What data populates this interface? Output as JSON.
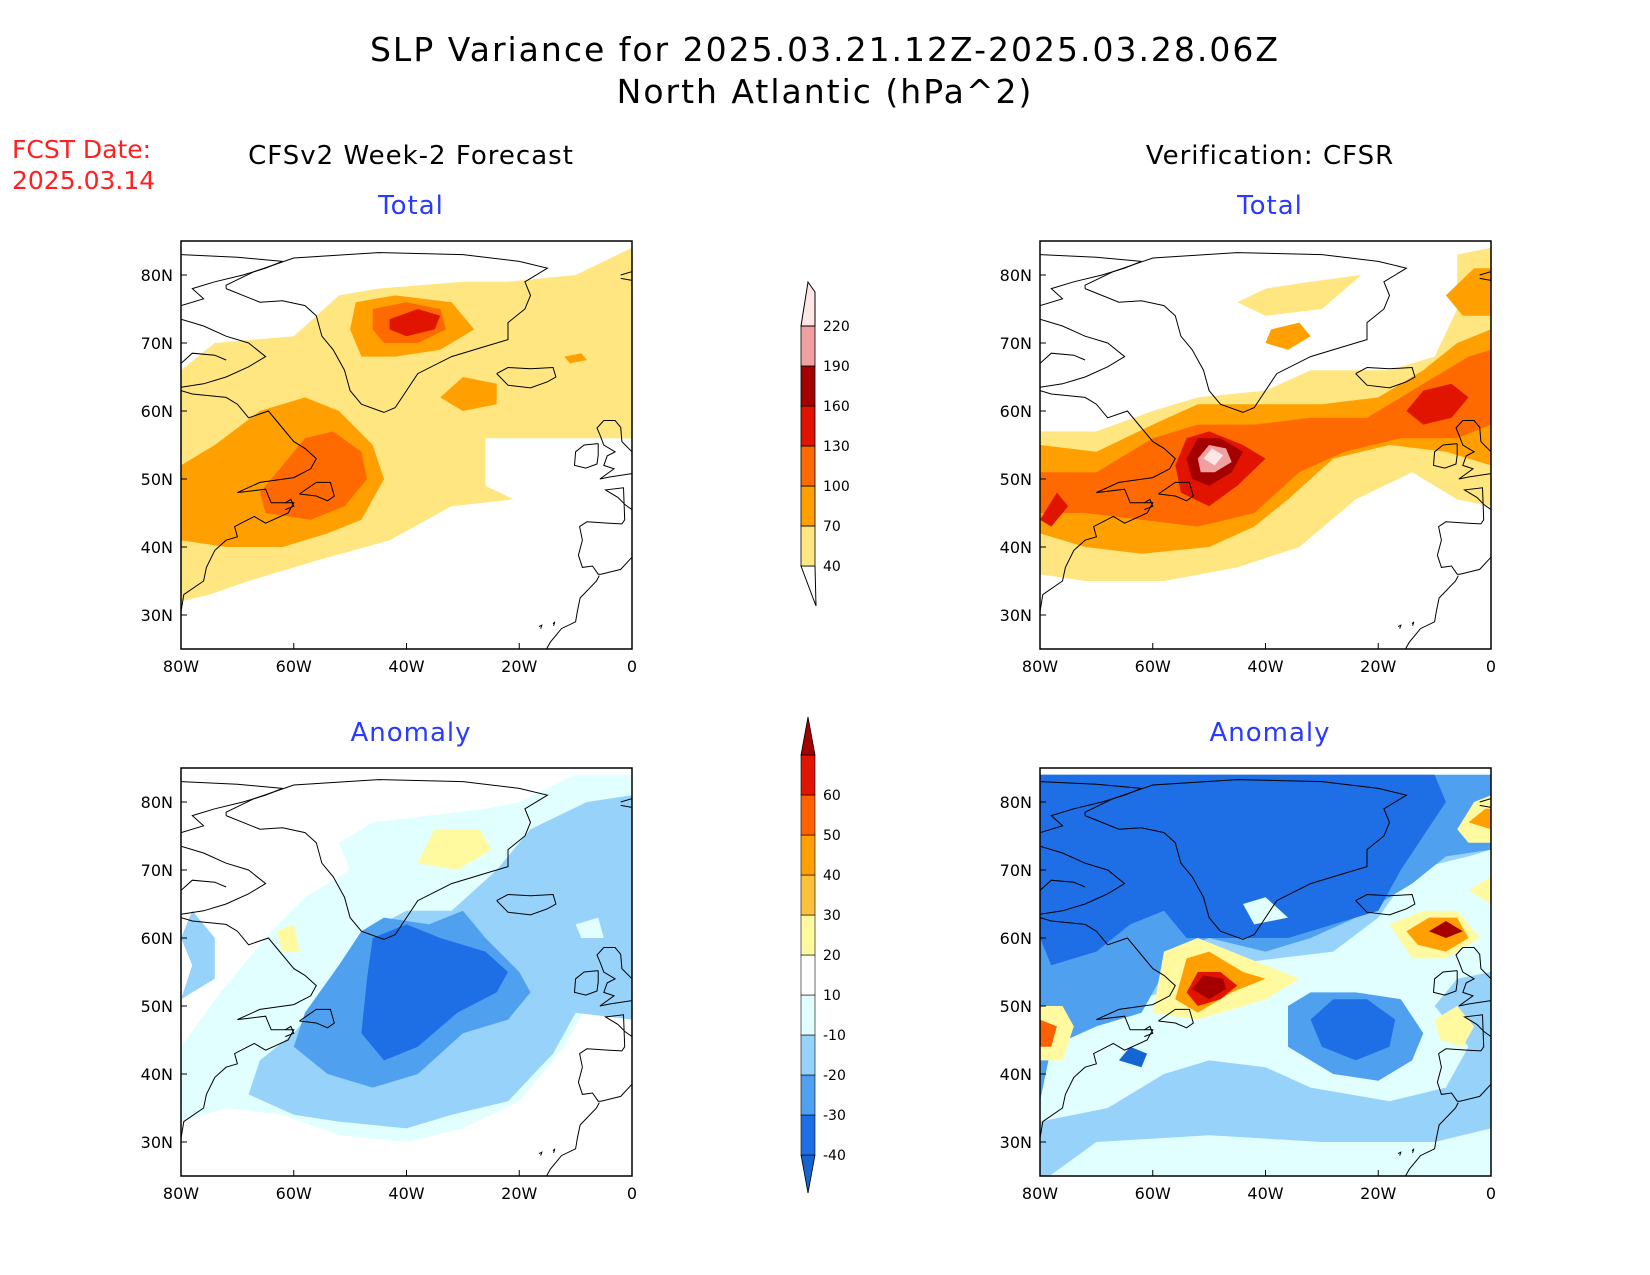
{
  "figure": {
    "title_line1": "SLP Variance for 2025.03.21.12Z-2025.03.28.06Z",
    "title_line2": "North Atlantic (hPa^2)",
    "fcst_label": "FCST Date:",
    "fcst_date": "2025.03.14",
    "left_column": "CFSv2 Week-2 Forecast",
    "right_column": "Verification: CFSR"
  },
  "panels": [
    {
      "id": "fcst-total",
      "title": "Total"
    },
    {
      "id": "verif-total",
      "title": "Total"
    },
    {
      "id": "fcst-anomaly",
      "title": "Anomaly"
    },
    {
      "id": "verif-anomaly",
      "title": "Anomaly"
    }
  ],
  "axes": {
    "x_ticks": [
      "80W",
      "60W",
      "40W",
      "20W",
      "0"
    ],
    "y_ticks": [
      "80N",
      "70N",
      "60N",
      "50N",
      "40N",
      "30N"
    ],
    "lon_range": [
      -80,
      0
    ],
    "lat_range": [
      25,
      85
    ]
  },
  "colorbars": {
    "total": {
      "levels": [
        "40",
        "70",
        "100",
        "130",
        "160",
        "190",
        "220"
      ],
      "colors": [
        "#ffe680",
        "#ffa000",
        "#ff6a00",
        "#e11400",
        "#a50000",
        "#f0a0a0",
        "#ffe6e6"
      ]
    },
    "anomaly": {
      "levels": [
        "-40",
        "-30",
        "-20",
        "-10",
        "10",
        "20",
        "30",
        "40",
        "50",
        "60"
      ],
      "colors": [
        "#1464d2",
        "#1e6ee6",
        "#50a0f0",
        "#96d2fa",
        "#e1ffff",
        "#ffffff",
        "#fffaa0",
        "#ffc03c",
        "#ffa000",
        "#ff6000",
        "#e11400",
        "#a50000"
      ]
    }
  },
  "chart_data": {
    "type": "heatmap",
    "title": "SLP Variance for 2025.03.21.12Z-2025.03.28.06Z",
    "units": "hPa^2",
    "fields": [
      {
        "panel": "CFSv2 Week-2 Forecast Total",
        "maxima": [
          {
            "lon": -39,
            "lat": 73,
            "value": 130
          },
          {
            "lon": -58,
            "lat": 49,
            "value": 100
          },
          {
            "lon": -29,
            "lat": 63,
            "value": 70
          }
        ]
      },
      {
        "panel": "Verification: CFSR Total",
        "maxima": [
          {
            "lon": -49,
            "lat": 52,
            "value": 220
          },
          {
            "lon": -8,
            "lat": 61,
            "value": 130
          },
          {
            "lon": -76,
            "lat": 46,
            "value": 100
          },
          {
            "lon": -2,
            "lat": 78,
            "value": 70
          },
          {
            "lon": -34,
            "lat": 72,
            "value": 70
          }
        ]
      },
      {
        "panel": "CFSv2 Week-2 Forecast Anomaly",
        "extrema": [
          {
            "lon": -40,
            "lat": 51,
            "value": -40
          },
          {
            "lon": -33,
            "lat": 74,
            "value": 30
          }
        ]
      },
      {
        "panel": "Verification: CFSR Anomaly",
        "extrema": [
          {
            "lon": -50,
            "lat": 53,
            "value": 60
          },
          {
            "lon": -8,
            "lat": 61,
            "value": 60
          },
          {
            "lon": -26,
            "lat": 47,
            "value": -40
          },
          {
            "lon": -35,
            "lat": 75,
            "value": -30
          },
          {
            "lon": -2,
            "lat": 78,
            "value": 40
          },
          {
            "lon": -78,
            "lat": 46,
            "value": 40
          }
        ]
      }
    ]
  }
}
